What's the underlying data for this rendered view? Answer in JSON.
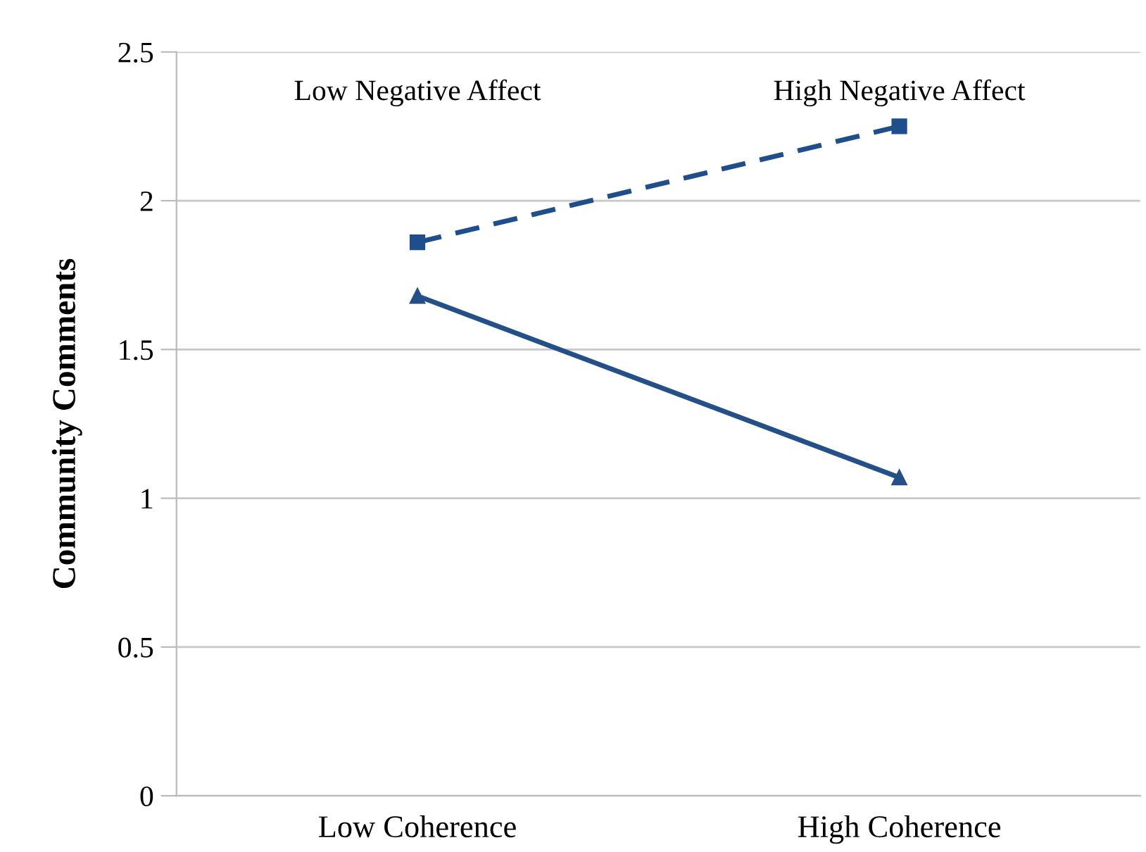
{
  "chart_data": {
    "type": "line",
    "ylabel": "Community Comments",
    "categories": [
      "Low Coherence",
      "High Coherence"
    ],
    "series": [
      {
        "color": "#1f4e8c",
        "values": [
          1.86,
          2.25
        ],
        "marker": "square",
        "line_style": "dashed"
      },
      {
        "color": "#24508a",
        "values": [
          1.68,
          1.07
        ],
        "marker": "triangle",
        "line_style": "solid"
      }
    ],
    "annotations": [
      "Low Negative Affect",
      "High Negative Affect"
    ],
    "ylim": [
      0,
      2.5
    ],
    "yticks": [
      0,
      0.5,
      1,
      1.5,
      2,
      2.5
    ],
    "grid": "y",
    "legend": false
  }
}
